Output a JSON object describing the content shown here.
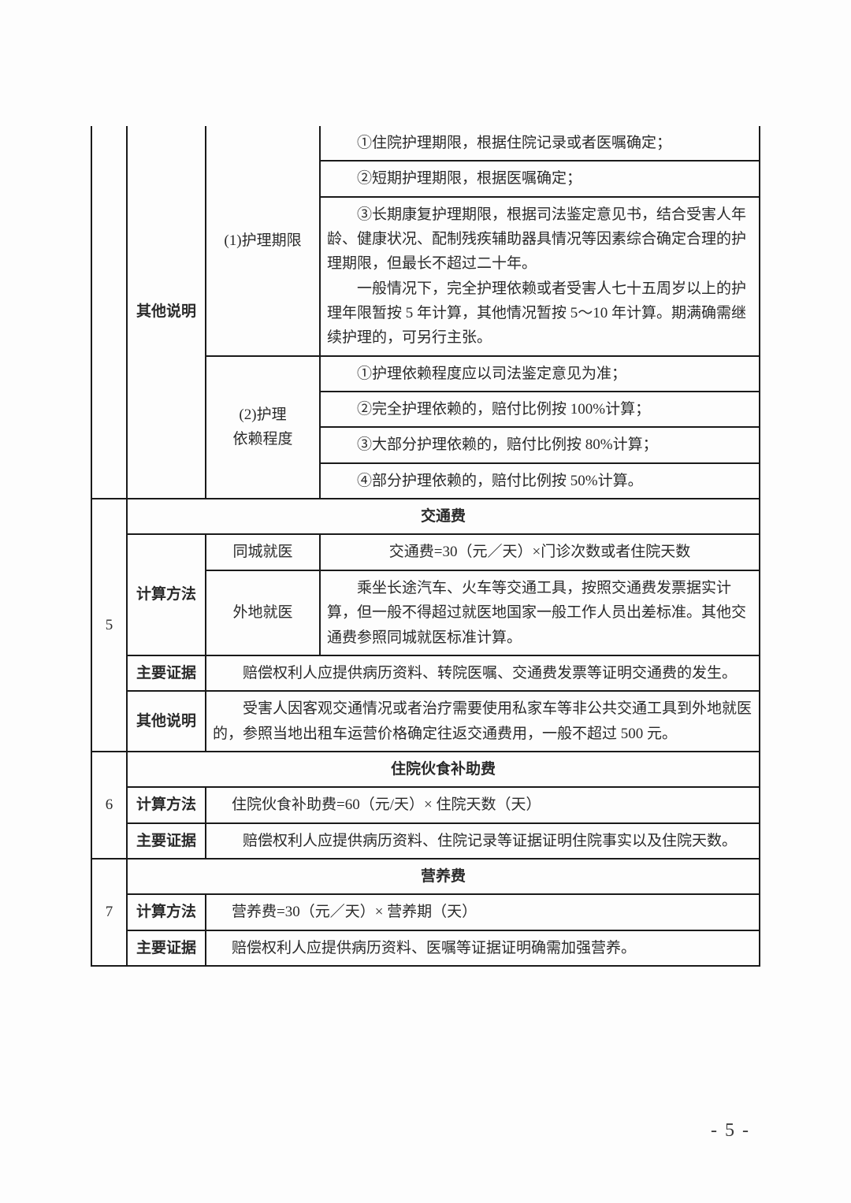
{
  "pageNumber": "- 5 -",
  "section4": {
    "rowLabel": "其他说明",
    "col1": {
      "title": "(1)护理期限",
      "items": [
        "①住院护理期限，根据住院记录或者医嘱确定；",
        "②短期护理期限，根据医嘱确定；",
        "　　③长期康复护理期限，根据司法鉴定意见书，结合受害人年龄、健康状况、配制残疾辅助器具情况等因素综合确定合理的护理期限，但最长不超过二十年。\n　　一般情况下，完全护理依赖或者受害人七十五周岁以上的护理年限暂按 5 年计算，其他情况暂按 5～10 年计算。期满确需继续护理的，可另行主张。"
      ]
    },
    "col2": {
      "title": "(2)护理\n依赖程度",
      "items": [
        "①护理依赖程度应以司法鉴定意见为准；",
        "②完全护理依赖的，赔付比例按 100%计算；",
        "③大部分护理依赖的，赔付比例按 80%计算；",
        "④部分护理依赖的，赔付比例按 50%计算。"
      ]
    }
  },
  "section5": {
    "num": "5",
    "title": "交通费",
    "calcLabel": "计算方法",
    "calc": {
      "same": {
        "label": "同城就医",
        "body": "交通费=30（元／天）×门诊次数或者住院天数"
      },
      "away": {
        "label": "外地就医",
        "body": "　　乘坐长途汽车、火车等交通工具，按照交通费发票据实计算，但一般不得超过就医地国家一般工作人员出差标准。其他交通费参照同城就医标准计算。"
      }
    },
    "eviLabel": "主要证据",
    "evidence": "　　赔偿权利人应提供病历资料、转院医嘱、交通费发票等证明交通费的发生。",
    "otherLabel": "其他说明",
    "other": "　　受害人因客观交通情况或者治疗需要使用私家车等非公共交通工具到外地就医的，参照当地出租车运营价格确定往返交通费用，一般不超过 500 元。"
  },
  "section6": {
    "num": "6",
    "title": "住院伙食补助费",
    "calcLabel": "计算方法",
    "calc": "住院伙食补助费=60（元/天）× 住院天数（天）",
    "eviLabel": "主要证据",
    "evidence": "　　赔偿权利人应提供病历资料、住院记录等证据证明住院事实以及住院天数。"
  },
  "section7": {
    "num": "7",
    "title": "营养费",
    "calcLabel": "计算方法",
    "calc": "营养费=30（元／天）× 营养期（天）",
    "eviLabel": "主要证据",
    "evidence": "赔偿权利人应提供病历资料、医嘱等证据证明确需加强营养。"
  }
}
